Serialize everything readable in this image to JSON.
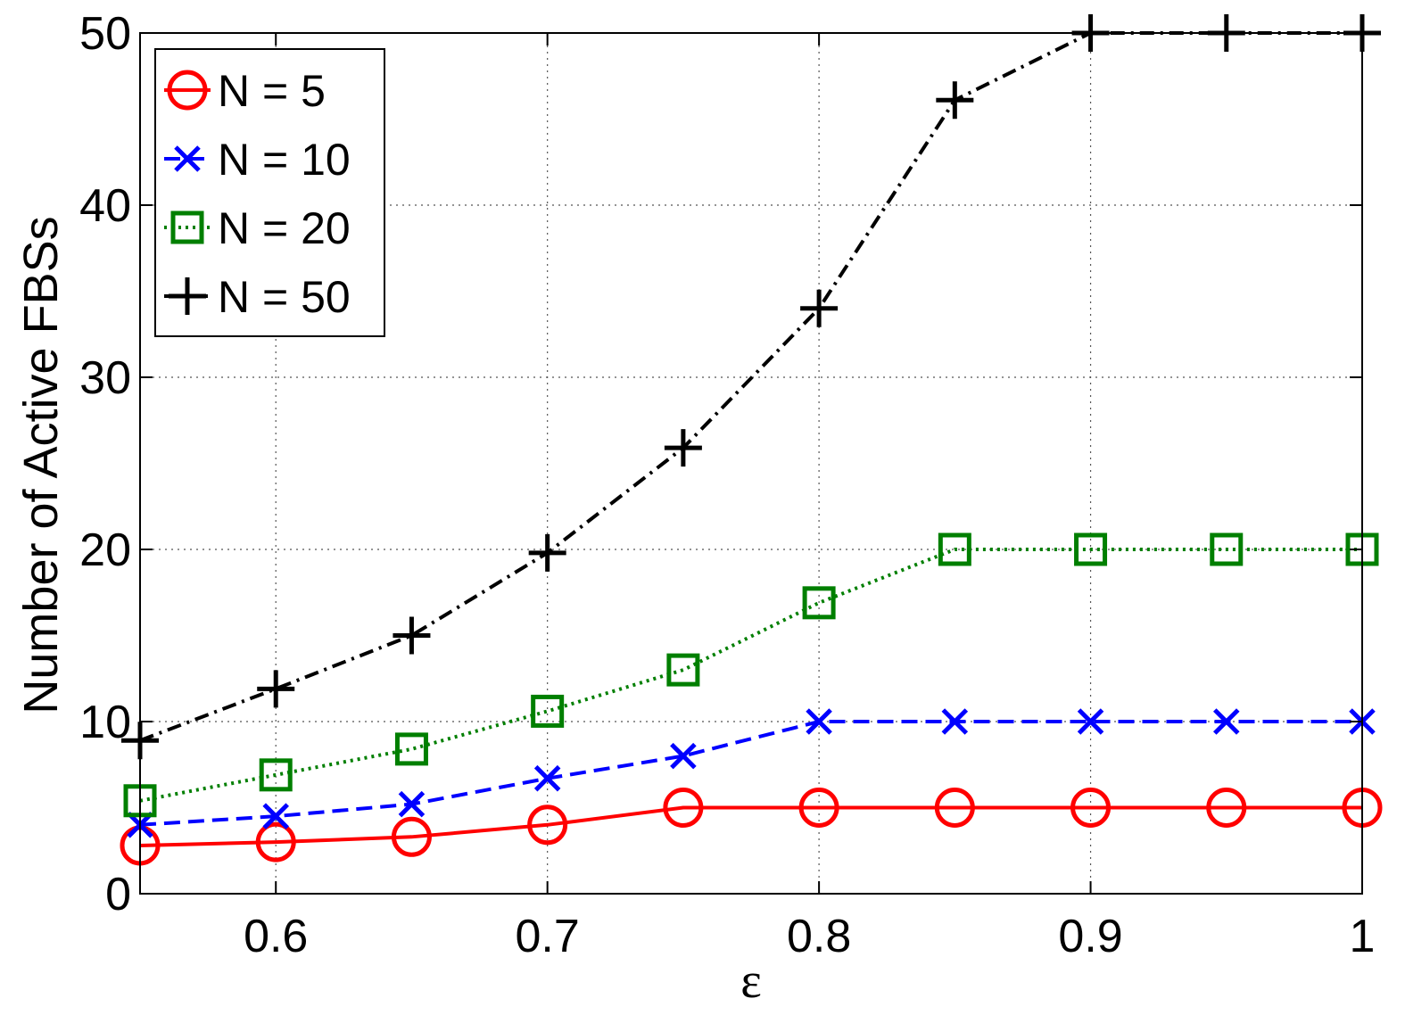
{
  "chart_data": {
    "type": "line",
    "xlabel": "ε",
    "ylabel": "Number of Active FBSs",
    "xlim": [
      0.55,
      1.0
    ],
    "ylim": [
      0,
      50
    ],
    "xticks": [
      0.6,
      0.7,
      0.8,
      0.9,
      1.0
    ],
    "xtick_labels": [
      "0.6",
      "0.7",
      "0.8",
      "0.9",
      "1"
    ],
    "yticks": [
      0,
      10,
      20,
      30,
      40,
      50
    ],
    "ytick_labels": [
      "0",
      "10",
      "20",
      "30",
      "40",
      "50"
    ],
    "grid": true,
    "legend_position": "top-left",
    "x": [
      0.55,
      0.6,
      0.65,
      0.7,
      0.75,
      0.8,
      0.85,
      0.9,
      0.95,
      1.0
    ],
    "series": [
      {
        "name": "N = 5",
        "values": [
          2.8,
          3.0,
          3.3,
          4.0,
          5.0,
          5.0,
          5.0,
          5.0,
          5.0,
          5.0
        ],
        "color": "#ff0000",
        "line_style": "solid",
        "marker": "circle"
      },
      {
        "name": "N = 10",
        "values": [
          4.0,
          4.5,
          5.2,
          6.7,
          8.0,
          10.0,
          10.0,
          10.0,
          10.0,
          10.0
        ],
        "color": "#0000ff",
        "line_style": "dashed",
        "marker": "x"
      },
      {
        "name": "N = 20",
        "values": [
          5.4,
          6.9,
          8.4,
          10.6,
          13.0,
          16.9,
          20.0,
          20.0,
          20.0,
          20.0
        ],
        "color": "#007f00",
        "line_style": "dotted",
        "marker": "square"
      },
      {
        "name": "N = 50",
        "values": [
          8.9,
          11.9,
          15.0,
          19.8,
          25.9,
          34.0,
          46.1,
          50.0,
          50.0,
          50.0
        ],
        "color": "#000000",
        "line_style": "dashdot",
        "marker": "plus"
      }
    ]
  }
}
